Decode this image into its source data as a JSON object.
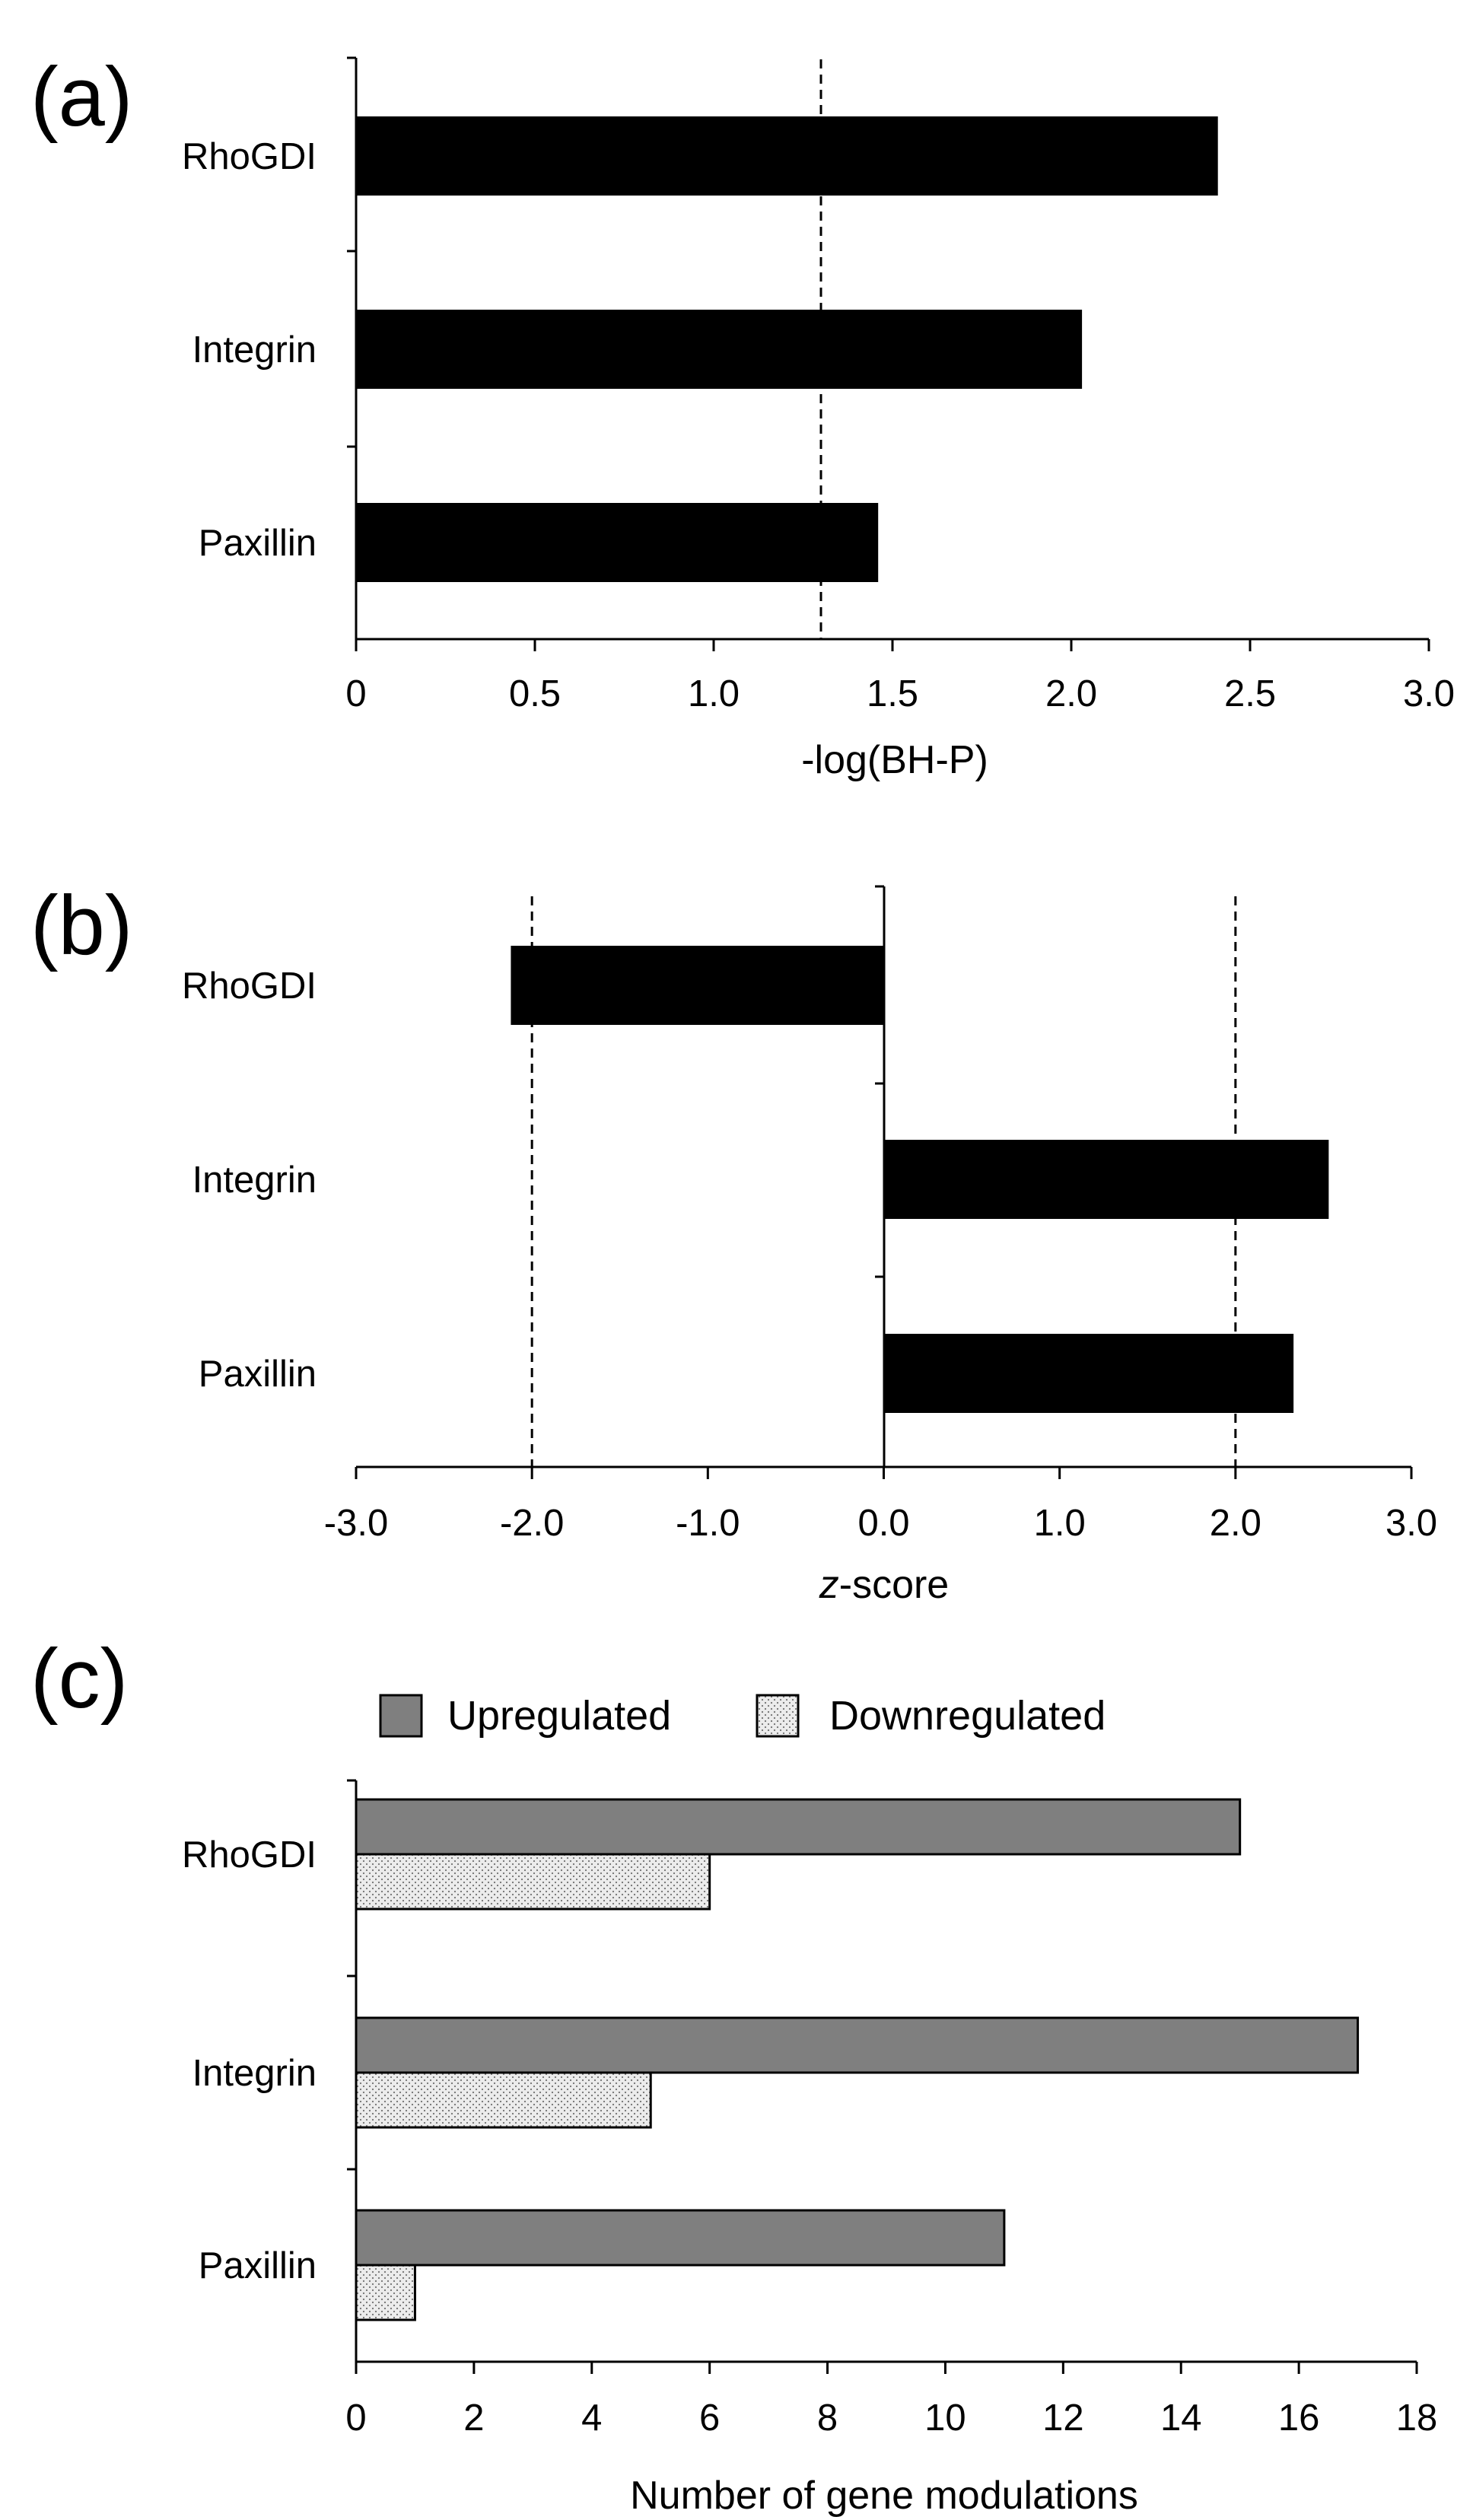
{
  "colors": {
    "bar_black": "#000000",
    "bar_gray": "#7f7f7f",
    "dotted_fill": "#ececec",
    "axis": "#000000"
  },
  "chart_data": [
    {
      "panel": "(a)",
      "type": "bar",
      "orientation": "horizontal",
      "categories": [
        "RhoGDI",
        "Integrin",
        "Paxillin"
      ],
      "series": [
        {
          "name": "-log(BH-P)",
          "values": [
            2.41,
            2.03,
            1.46
          ]
        }
      ],
      "xlabel": "-log(BH-P)",
      "xlim": [
        0,
        3.0
      ],
      "xticks": [
        0,
        0.5,
        1.0,
        1.5,
        2.0,
        2.5,
        3.0
      ],
      "xtick_labels": [
        "0",
        "0.5",
        "1.0",
        "1.5",
        "2.0",
        "2.5",
        "3.0"
      ],
      "reference_lines": [
        1.3
      ],
      "grid": false
    },
    {
      "panel": "(b)",
      "type": "bar",
      "orientation": "horizontal",
      "categories": [
        "RhoGDI",
        "Integrin",
        "Paxillin"
      ],
      "series": [
        {
          "name": "z-score",
          "values": [
            -2.12,
            2.53,
            2.33
          ]
        }
      ],
      "xlabel_italic": "z",
      "xlabel_rest": "-score",
      "xlim": [
        -3.0,
        3.0
      ],
      "xticks": [
        -3,
        -2,
        -1,
        0,
        1,
        2,
        3
      ],
      "xtick_labels": [
        "-3.0",
        "-2.0",
        "-1.0",
        "0.0",
        "1.0",
        "2.0",
        "3.0"
      ],
      "reference_lines": [
        -2.0,
        2.0
      ],
      "grid": false
    },
    {
      "panel": "(c)",
      "type": "bar",
      "orientation": "horizontal",
      "categories": [
        "RhoGDI",
        "Integrin",
        "Paxillin"
      ],
      "series": [
        {
          "name": "Upregulated",
          "values": [
            15,
            17,
            11
          ]
        },
        {
          "name": "Downregulated",
          "values": [
            6,
            5,
            1
          ]
        }
      ],
      "xlabel": "Number of gene modulations",
      "xlim": [
        0,
        18
      ],
      "xticks": [
        0,
        2,
        4,
        6,
        8,
        10,
        12,
        14,
        16,
        18
      ],
      "xtick_labels": [
        "0",
        "2",
        "4",
        "6",
        "8",
        "10",
        "12",
        "14",
        "16",
        "18"
      ],
      "legend": "top",
      "grid": false
    }
  ]
}
